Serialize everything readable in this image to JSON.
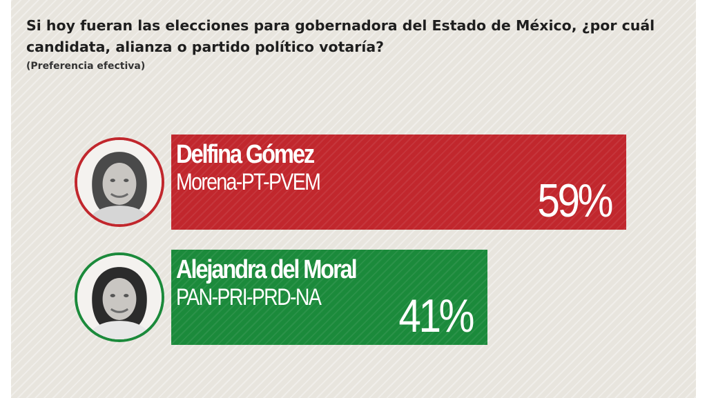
{
  "chart_data": {
    "type": "bar",
    "orientation": "horizontal",
    "title": "Si hoy fueran las elecciones para gobernadora del Estado de México, ¿por cuál candidata, alianza o partido político votaría?",
    "subtitle": "(Preferencia efectiva)",
    "value_suffix": "%",
    "xlim": [
      0,
      62
    ],
    "grid": false,
    "legend": "none",
    "bars": [
      {
        "name": "Delfina Gómez",
        "party": "Morena-PT-PVEM",
        "value": 59,
        "color": "#c1272d",
        "label": "59%",
        "avatar_icon": "woman-portrait-icon"
      },
      {
        "name": "Alejandra del Moral",
        "party": "PAN-PRI-PRD-NA",
        "value": 41,
        "color": "#1b8a3b",
        "label": "41%",
        "avatar_icon": "woman-portrait-icon"
      }
    ]
  }
}
